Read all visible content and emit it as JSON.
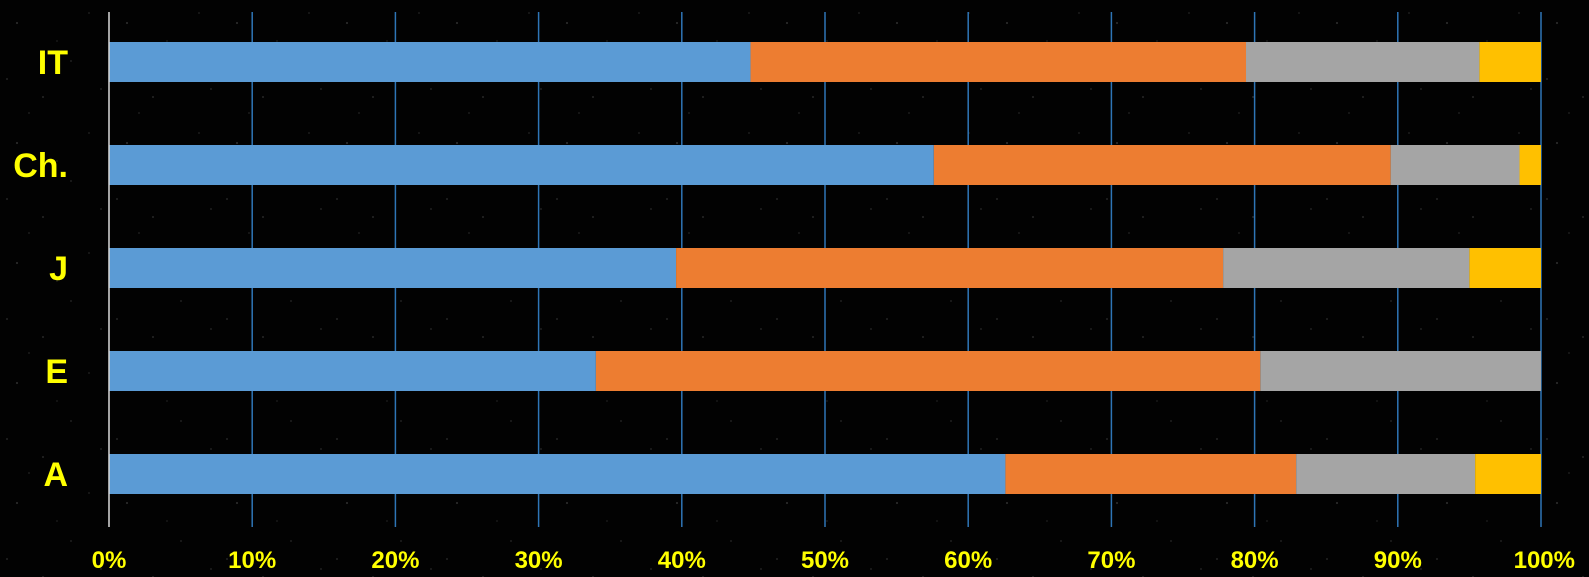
{
  "chart_data": {
    "type": "bar",
    "orientation": "horizontal",
    "stacked": "percent",
    "categories": [
      "IT",
      "Ch.",
      "J",
      "E",
      "A"
    ],
    "series": [
      {
        "color": "#5B9BD5",
        "values": [
          44.8,
          57.6,
          39.6,
          34.0,
          62.6
        ]
      },
      {
        "color": "#ED7D31",
        "values": [
          34.6,
          31.9,
          38.2,
          46.4,
          20.3
        ]
      },
      {
        "color": "#A5A5A5",
        "values": [
          16.3,
          9.0,
          17.2,
          19.6,
          12.5
        ]
      },
      {
        "color": "#FFC000",
        "values": [
          4.3,
          1.5,
          5.0,
          0.0,
          4.6
        ]
      }
    ],
    "xlim": [
      0,
      100
    ],
    "xticks": [
      0,
      10,
      20,
      30,
      40,
      50,
      60,
      70,
      80,
      90,
      100
    ],
    "xtick_labels": [
      "0%",
      "10%",
      "20%",
      "30%",
      "40%",
      "50%",
      "60%",
      "70%",
      "80%",
      "90%",
      "100%"
    ],
    "grid": "vertical",
    "legend": "none",
    "title": "",
    "xlabel": "",
    "ylabel": ""
  },
  "style": {
    "label_color": "#FFFF00",
    "grid_color": "#2E75B6",
    "axis_color": "#D9D9D9",
    "background": "#000000"
  }
}
